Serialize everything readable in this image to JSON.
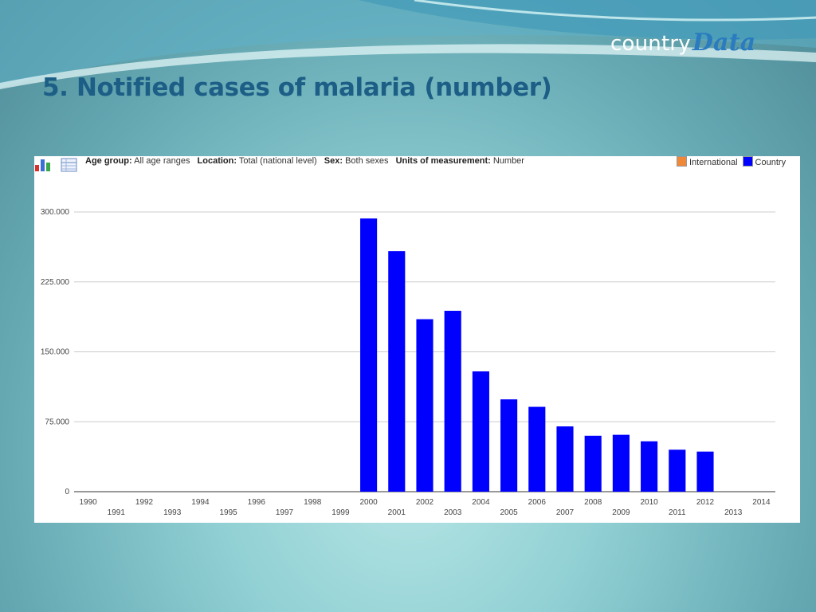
{
  "slide": {
    "title": "5. Notified cases of malaria (number)",
    "logo_a": "country",
    "logo_b": "Data"
  },
  "filters": [
    {
      "label": "Age group:",
      "value": "All age ranges"
    },
    {
      "label": "Location:",
      "value": "Total (national level)"
    },
    {
      "label": "Sex:",
      "value": "Both sexes"
    },
    {
      "label": "Units of measurement:",
      "value": "Number"
    }
  ],
  "toolbar": {
    "chart_icon": "bar-chart-icon",
    "table_icon": "table-icon"
  },
  "legend": [
    {
      "name": "International",
      "color": "#f0883a"
    },
    {
      "name": "Country",
      "color": "#0000ff"
    }
  ],
  "chart_data": {
    "type": "bar",
    "title": "",
    "xlabel": "",
    "ylabel": "",
    "ylim": [
      0,
      300000
    ],
    "yticks": [
      0,
      75000,
      150000,
      225000,
      300000
    ],
    "ytick_labels": [
      "0",
      "75.000",
      "150.000",
      "225.000",
      "300.000"
    ],
    "categories": [
      "1990",
      "1991",
      "1992",
      "1993",
      "1994",
      "1995",
      "1996",
      "1997",
      "1998",
      "1999",
      "2000",
      "2001",
      "2002",
      "2003",
      "2004",
      "2005",
      "2006",
      "2007",
      "2008",
      "2009",
      "2010",
      "2011",
      "2012",
      "2013",
      "2014"
    ],
    "series": [
      {
        "name": "Country",
        "color": "#0000ff",
        "values": [
          null,
          null,
          null,
          null,
          null,
          null,
          null,
          null,
          null,
          null,
          293000,
          258000,
          185000,
          194000,
          129000,
          99000,
          91000,
          70000,
          60000,
          61000,
          54000,
          45000,
          43000,
          null,
          null
        ]
      }
    ],
    "grid": true,
    "legend_position": "top-right"
  }
}
